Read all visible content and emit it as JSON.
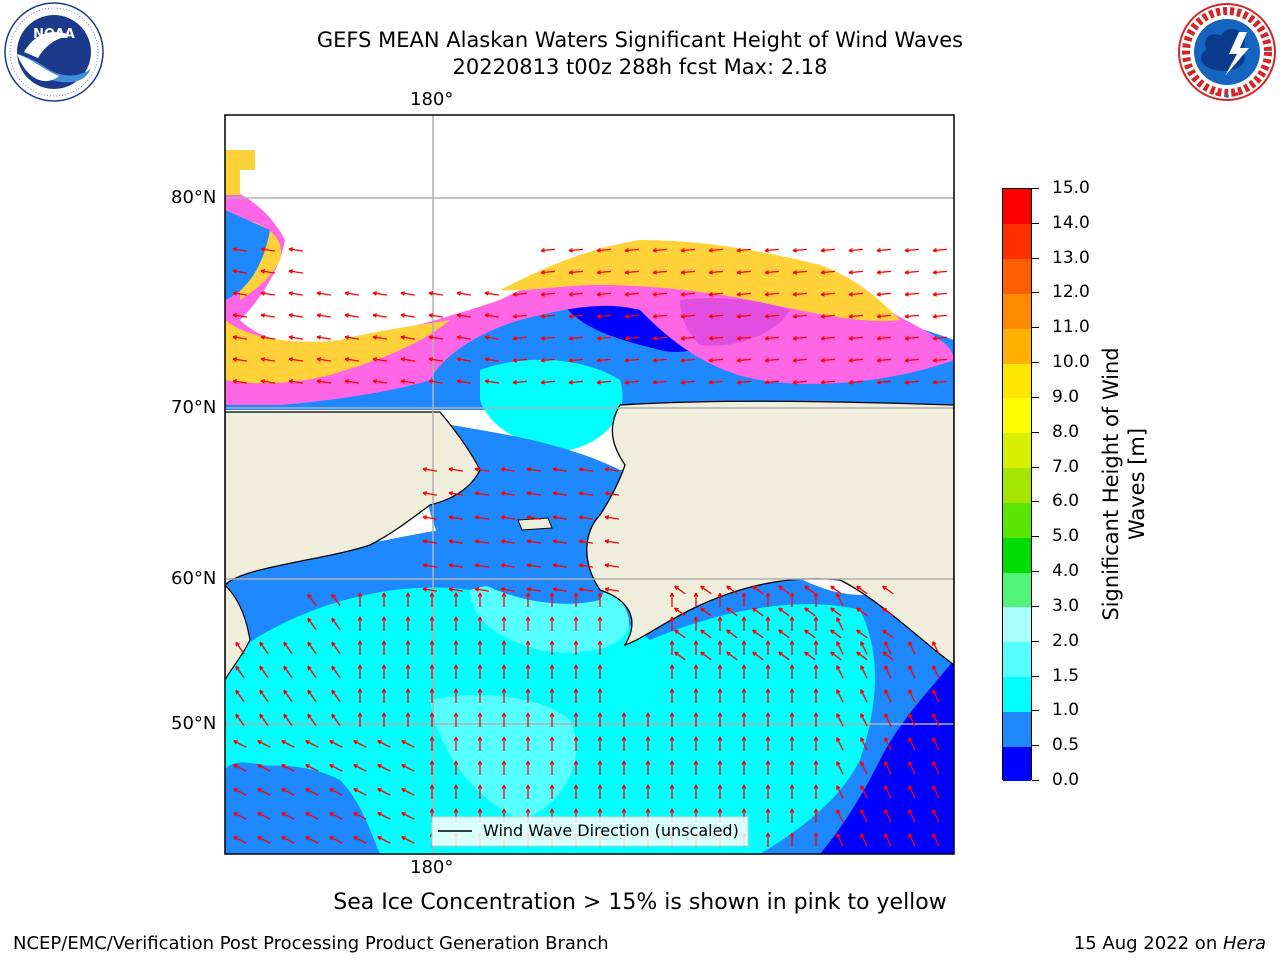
{
  "title": {
    "line1": "GEFS MEAN Alaskan Waters Significant Height of Wind Waves",
    "line2": "20220813 t00z 288h fcst   Max: 2.18"
  },
  "logos": {
    "left": {
      "name": "NOAA",
      "ring_text": "NATIONAL OCEANIC AND ATMOSPHERIC ADMINISTRATION · U.S. DEPARTMENT OF COMMERCE"
    },
    "right": {
      "name": "National Weather Service",
      "ring_text": "NATIONAL WEATHER SERVICE"
    }
  },
  "map": {
    "top_lon_label": "180°",
    "bottom_lon_label": "180°",
    "lat_labels": [
      "80°N",
      "70°N",
      "60°N",
      "50°N"
    ],
    "legend_label": "Wind Wave Direction (unscaled)",
    "colors": {
      "land": "#EFEDDC",
      "coast": "#000000",
      "gridlines": "#B0B0B0",
      "arrows": "#FF0000",
      "ice_pink": "#FF66E6",
      "ice_yellow": "#FFD23A"
    }
  },
  "colorbar": {
    "label_line1": "Significant Height of Wind",
    "label_line2": "Waves [m]",
    "ticks": [
      "0.0",
      "0.5",
      "1.0",
      "1.5",
      "2.0",
      "3.0",
      "4.0",
      "5.0",
      "6.0",
      "7.0",
      "8.0",
      "9.0",
      "10.0",
      "11.0",
      "12.0",
      "13.0",
      "14.0",
      "15.0"
    ],
    "colors": [
      "#0000FF",
      "#1E88FF",
      "#00FFFF",
      "#56FFFF",
      "#A9FFFF",
      "#52F57A",
      "#00DC00",
      "#5AE600",
      "#A5E600",
      "#D7F000",
      "#FFFF00",
      "#FFE600",
      "#FFB000",
      "#FF8A00",
      "#FF5E00",
      "#FF3000",
      "#FF0000"
    ]
  },
  "caption": "Sea Ice Concentration > 15% is shown in pink to yellow",
  "footer": {
    "left": "NCEP/EMC/Verification Post Processing Product Generation Branch",
    "right_prefix": "15 Aug 2022 on ",
    "right_host": "Hera"
  }
}
